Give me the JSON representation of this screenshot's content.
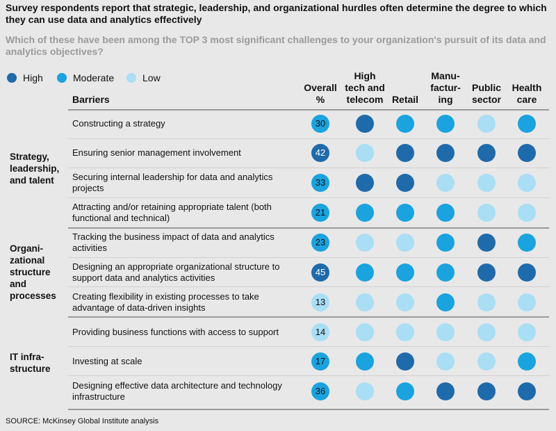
{
  "title": "Survey respondents report that strategic, leadership, and organizational hurdles often determine the degree to which they can use data and analytics effectively",
  "question": "Which of these have been among the TOP 3 most significant challenges to your organization's pursuit of its data and analytics objectives?",
  "legend": [
    {
      "label": "High",
      "color": "#1f6aab"
    },
    {
      "label": "Moderate",
      "color": "#1aa3de"
    },
    {
      "label": "Low",
      "color": "#a9def5"
    }
  ],
  "headers": {
    "barriers": "Barriers",
    "overall": "Overall\n%",
    "columns": [
      "High\ntech and\ntelecom",
      "Retail",
      "Manu-\nfactur-\ning",
      "Public\nsector",
      "Health\ncare"
    ]
  },
  "source": "SOURCE: McKinsey Global Institute analysis",
  "chart_data": {
    "type": "table",
    "levels": [
      "High",
      "Moderate",
      "Low"
    ],
    "groups": [
      {
        "name": "Strategy,\nleadership,\nand talent",
        "rows": [
          0,
          1,
          2,
          3
        ]
      },
      {
        "name": "Organi-\nzational\nstructure\nand\nprocesses",
        "rows": [
          4,
          5,
          6
        ]
      },
      {
        "name": "IT infra-\nstructure",
        "rows": [
          7,
          8,
          9
        ]
      }
    ],
    "rows": [
      {
        "barrier": "Constructing a strategy",
        "overall": 30,
        "overall_level": "Moderate",
        "ratings": [
          "High",
          "Moderate",
          "Moderate",
          "Low",
          "Moderate"
        ]
      },
      {
        "barrier": "Ensuring senior management involvement",
        "overall": 42,
        "overall_level": "High",
        "ratings": [
          "Low",
          "High",
          "High",
          "High",
          "High"
        ]
      },
      {
        "barrier": "Securing internal leadership for data and analytics projects",
        "overall": 33,
        "overall_level": "Moderate",
        "ratings": [
          "High",
          "High",
          "Low",
          "Low",
          "Low"
        ]
      },
      {
        "barrier": "Attracting and/or retaining appropriate talent (both functional and technical)",
        "overall": 21,
        "overall_level": "Moderate",
        "ratings": [
          "Moderate",
          "Moderate",
          "Moderate",
          "Low",
          "Low"
        ]
      },
      {
        "barrier": "Tracking the business impact of data and analytics activities",
        "overall": 23,
        "overall_level": "Moderate",
        "ratings": [
          "Low",
          "Low",
          "Moderate",
          "High",
          "Moderate"
        ]
      },
      {
        "barrier": "Designing an appropriate organizational structure to support data and analytics activities",
        "overall": 45,
        "overall_level": "High",
        "ratings": [
          "Moderate",
          "Moderate",
          "Moderate",
          "High",
          "High"
        ]
      },
      {
        "barrier": "Creating flexibility in existing processes to take advantage of data-driven insights",
        "overall": 13,
        "overall_level": "Low",
        "ratings": [
          "Low",
          "Low",
          "Moderate",
          "Low",
          "Low"
        ]
      },
      {
        "barrier": "Providing business functions with access to support",
        "overall": 14,
        "overall_level": "Low",
        "ratings": [
          "Low",
          "Low",
          "Low",
          "Low",
          "Low"
        ]
      },
      {
        "barrier": "Investing at scale",
        "overall": 17,
        "overall_level": "Moderate",
        "ratings": [
          "Moderate",
          "High",
          "Low",
          "Low",
          "Moderate"
        ]
      },
      {
        "barrier": "Designing effective data architecture and technology infrastructure",
        "overall": 36,
        "overall_level": "Moderate",
        "ratings": [
          "Low",
          "Moderate",
          "High",
          "High",
          "High"
        ]
      }
    ]
  }
}
